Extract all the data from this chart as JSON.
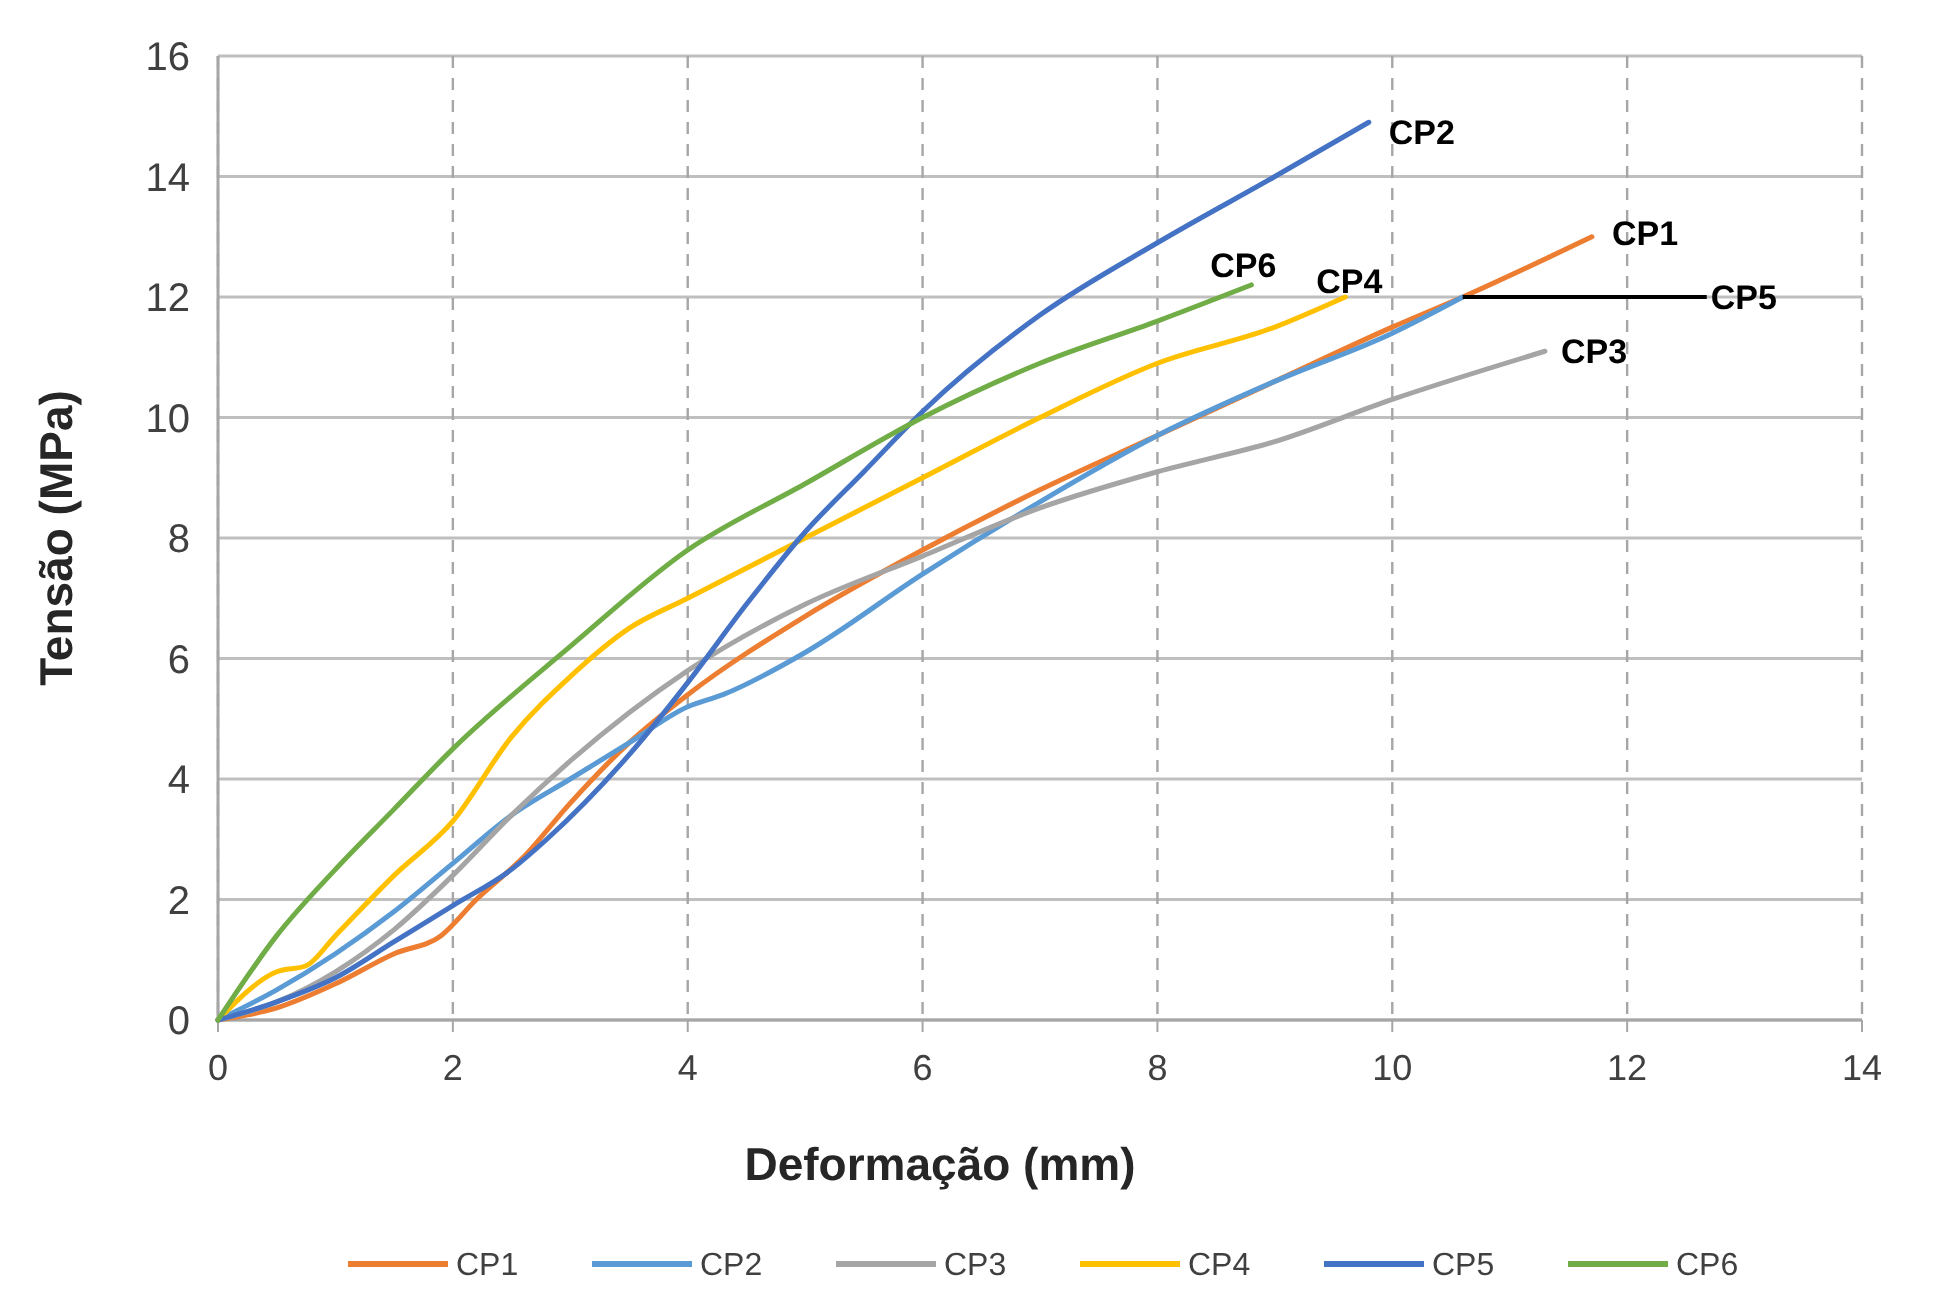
{
  "chart_data": {
    "type": "line",
    "xlabel": "Deformação (mm)",
    "ylabel": "Tensão (MPa)",
    "xlim": [
      0,
      14
    ],
    "xticks": [
      0,
      2,
      4,
      6,
      8,
      10,
      12,
      14
    ],
    "ylim": [
      0,
      16
    ],
    "yticks": [
      0,
      2,
      4,
      6,
      8,
      10,
      12,
      14,
      16
    ],
    "grid": true,
    "legend": "bottom",
    "marker": "none",
    "line_style": "solid",
    "series": [
      {
        "name": "CP1",
        "color": "#ed7d31",
        "x": [
          0,
          0.5,
          1,
          1.5,
          1.9,
          2.2,
          2.6,
          3,
          3.5,
          4,
          5,
          6,
          7,
          8,
          9,
          10,
          10.6,
          11.7
        ],
        "values": [
          0,
          0.2,
          0.6,
          1.1,
          1.4,
          2,
          2.7,
          3.6,
          4.6,
          5.4,
          6.7,
          7.8,
          8.8,
          9.7,
          10.6,
          11.5,
          12,
          13
        ]
      },
      {
        "name": "CP2",
        "color": "#5b9bd5",
        "x": [
          0,
          0.5,
          1,
          1.5,
          2,
          2.5,
          3,
          3.5,
          4,
          4.3,
          5,
          6,
          7,
          8,
          9,
          10,
          10.6
        ],
        "values": [
          0,
          0.5,
          1.1,
          1.8,
          2.6,
          3.4,
          4,
          4.6,
          5.2,
          5.4,
          6.1,
          7.4,
          8.6,
          9.7,
          10.6,
          11.4,
          12
        ]
      },
      {
        "name": "CP3",
        "color": "#a5a5a5",
        "x": [
          0,
          0.5,
          1,
          1.5,
          2,
          2.5,
          3,
          3.5,
          4,
          5,
          6,
          7,
          8,
          9,
          10,
          11.3
        ],
        "values": [
          0,
          0.3,
          0.8,
          1.5,
          2.4,
          3.4,
          4.3,
          5.1,
          5.8,
          6.9,
          7.7,
          8.5,
          9.1,
          9.6,
          10.3,
          11.1
        ]
      },
      {
        "name": "CP4",
        "color": "#ffc000",
        "x": [
          0,
          0.5,
          0.75,
          1,
          1.5,
          2,
          2.5,
          3,
          3.5,
          4,
          5,
          6,
          7,
          8,
          9,
          9.6
        ],
        "values": [
          0,
          0.8,
          0.9,
          1.4,
          2.4,
          3.3,
          4.7,
          5.7,
          6.5,
          7,
          8,
          9,
          10,
          10.9,
          11.5,
          12
        ]
      },
      {
        "name": "CP5",
        "color": "#4472c4",
        "x": [
          0,
          0.5,
          1,
          1.5,
          2,
          2.5,
          2.8,
          3.5,
          4,
          4.5,
          5,
          5.5,
          6,
          7,
          8,
          9,
          9.8
        ],
        "values": [
          0,
          0.3,
          0.7,
          1.3,
          1.9,
          2.5,
          3,
          4.4,
          5.6,
          6.9,
          8.1,
          9.1,
          10.1,
          11.7,
          12.9,
          14,
          14.9
        ]
      },
      {
        "name": "CP6",
        "color": "#70ad47",
        "x": [
          0,
          0.5,
          1,
          1.5,
          2,
          3,
          4,
          5,
          6,
          7,
          8,
          8.8
        ],
        "values": [
          0,
          1.4,
          2.5,
          3.5,
          4.5,
          6.2,
          7.8,
          8.9,
          10,
          10.9,
          11.6,
          12.2
        ]
      }
    ],
    "annotations": [
      {
        "text": "CP2",
        "x": 9.8,
        "y": 14.9
      },
      {
        "text": "CP1",
        "x": 11.7,
        "y": 13
      },
      {
        "text": "CP5",
        "x": 10.6,
        "y": 12
      },
      {
        "text": "CP3",
        "x": 11.3,
        "y": 11.1
      },
      {
        "text": "CP4",
        "x": 9.6,
        "y": 12
      },
      {
        "text": "CP6",
        "x": 8.8,
        "y": 12.2
      }
    ]
  }
}
